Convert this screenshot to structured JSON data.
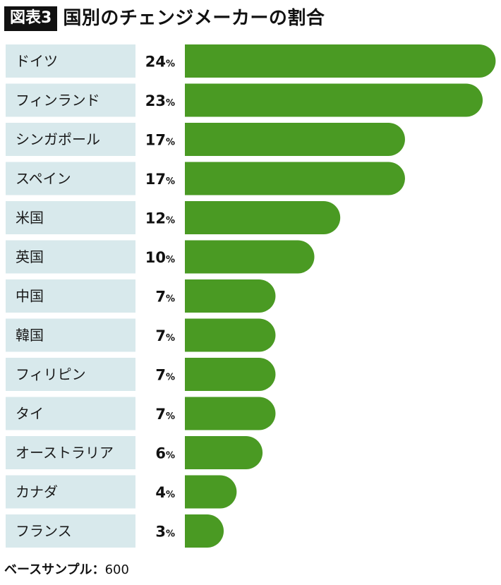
{
  "header": {
    "badge": "図表3",
    "title": "国別のチェンジメーカーの割合"
  },
  "footer": {
    "label": "ベースサンプル：",
    "value": "600"
  },
  "colors": {
    "bar": "#4a9a23",
    "label_bg": "#d8e9ec",
    "text": "#111111"
  },
  "chart_data": {
    "type": "bar",
    "orientation": "horizontal",
    "unit": "%",
    "categories": [
      "ドイツ",
      "フィンランド",
      "シンガポール",
      "スペイン",
      "米国",
      "英国",
      "中国",
      "韓国",
      "フィリピン",
      "タイ",
      "オーストラリア",
      "カナダ",
      "フランス"
    ],
    "values": [
      24,
      23,
      17,
      17,
      12,
      10,
      7,
      7,
      7,
      7,
      6,
      4,
      3
    ],
    "title": "国別のチェンジメーカーの割合",
    "xlabel": "",
    "ylabel": ""
  }
}
